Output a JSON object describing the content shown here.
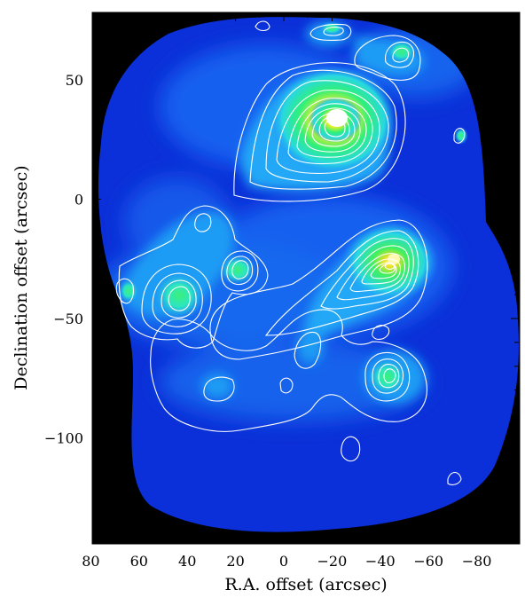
{
  "image": {
    "kind": "astronomical intensity map with contours",
    "colormap": [
      "#000000",
      "#0a2bd6",
      "#1f8bff",
      "#28e6e6",
      "#2ff07a",
      "#e6f020",
      "#ff4a1a",
      "#ffffff"
    ],
    "contour_color": "#ffffff"
  },
  "chart_data": {
    "type": "heatmap",
    "xlabel": "R.A. offset (arcsec)",
    "ylabel": "Declination offset (arcsec)",
    "xlim": [
      80,
      -100
    ],
    "ylim": [
      -145,
      78
    ],
    "x_ticks": [
      80,
      60,
      40,
      20,
      0,
      -20,
      -40,
      -60,
      -80
    ],
    "x_tick_labels": [
      "80",
      "60",
      "40",
      "20",
      "0",
      "−20",
      "−40",
      "−60",
      "−80"
    ],
    "y_ticks": [
      50,
      0,
      -50,
      -100
    ],
    "y_tick_labels": [
      "50",
      "0",
      "−50",
      "−100"
    ],
    "grid": false,
    "peaks": [
      {
        "x": -22,
        "y": 32,
        "level": 1.0
      },
      {
        "x": -46,
        "y": -26,
        "level": 0.78
      },
      {
        "x": 19,
        "y": -30,
        "level": 0.55
      },
      {
        "x": 44,
        "y": -42,
        "level": 0.5
      },
      {
        "x": -45,
        "y": -76,
        "level": 0.45
      },
      {
        "x": -48,
        "y": 62,
        "level": 0.5
      },
      {
        "x": -20,
        "y": 72,
        "level": 0.45
      }
    ]
  }
}
